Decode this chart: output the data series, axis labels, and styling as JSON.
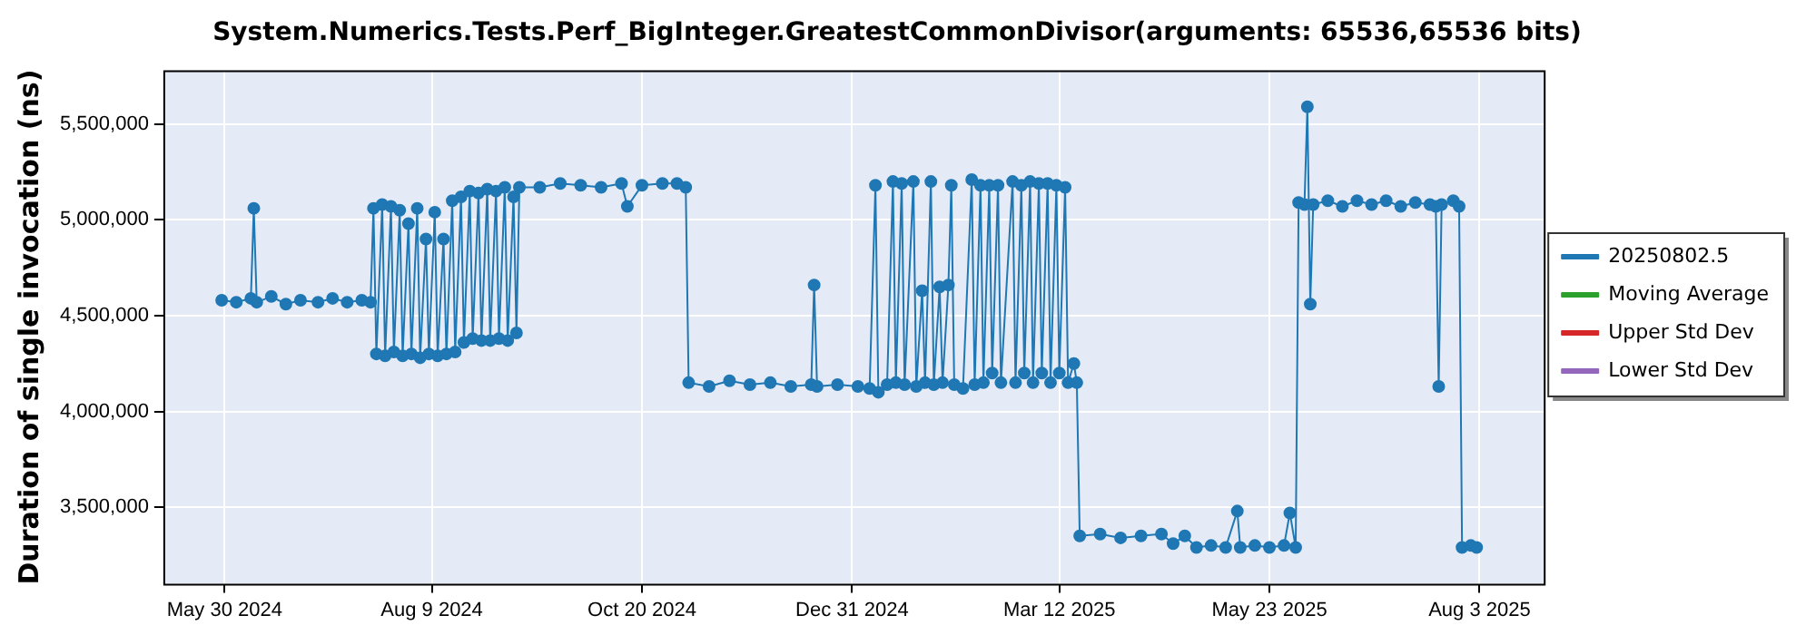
{
  "chart_data": {
    "type": "line",
    "title": "System.Numerics.Tests.Perf_BigInteger.GreatestCommonDivisor(arguments: 65536,65536 bits)",
    "ylabel": "Duration of single invocation (ns)",
    "grid": true,
    "legend": "right",
    "marker": "circle",
    "line_style": "solid",
    "xlim": [
      "2024-05-09",
      "2025-08-25"
    ],
    "xticks": [
      {
        "value": "2024-05-30",
        "label": "May 30 2024"
      },
      {
        "value": "2024-08-09",
        "label": "Aug 9 2024"
      },
      {
        "value": "2024-10-20",
        "label": "Oct 20 2024"
      },
      {
        "value": "2024-12-31",
        "label": "Dec 31 2024"
      },
      {
        "value": "2025-03-12",
        "label": "Mar 12 2025"
      },
      {
        "value": "2025-05-23",
        "label": "May 23 2025"
      },
      {
        "value": "2025-08-03",
        "label": "Aug 3 2025"
      }
    ],
    "ylim": [
      3100000,
      5780000
    ],
    "yticks": [
      {
        "value": 3500000,
        "label": "3,500,000"
      },
      {
        "value": 4000000,
        "label": "4,000,000"
      },
      {
        "value": 4500000,
        "label": "4,500,000"
      },
      {
        "value": 5000000,
        "label": "5,000,000"
      },
      {
        "value": 5500000,
        "label": "5,500,000"
      }
    ],
    "series": [
      {
        "name": "20250802.5",
        "color": "#1f77b4",
        "x": [
          "2024-05-29",
          "2024-06-03",
          "2024-06-08",
          "2024-06-09",
          "2024-06-10",
          "2024-06-15",
          "2024-06-20",
          "2024-06-25",
          "2024-07-01",
          "2024-07-06",
          "2024-07-11",
          "2024-07-16",
          "2024-07-19",
          "2024-07-20",
          "2024-07-21",
          "2024-07-23",
          "2024-07-24",
          "2024-07-26",
          "2024-07-27",
          "2024-07-29",
          "2024-07-30",
          "2024-08-01",
          "2024-08-02",
          "2024-08-04",
          "2024-08-05",
          "2024-08-07",
          "2024-08-08",
          "2024-08-10",
          "2024-08-11",
          "2024-08-13",
          "2024-08-14",
          "2024-08-16",
          "2024-08-17",
          "2024-08-19",
          "2024-08-20",
          "2024-08-22",
          "2024-08-23",
          "2024-08-25",
          "2024-08-26",
          "2024-08-28",
          "2024-08-29",
          "2024-08-31",
          "2024-09-01",
          "2024-09-03",
          "2024-09-04",
          "2024-09-06",
          "2024-09-07",
          "2024-09-08",
          "2024-09-15",
          "2024-09-22",
          "2024-09-29",
          "2024-10-06",
          "2024-10-13",
          "2024-10-15",
          "2024-10-20",
          "2024-10-27",
          "2024-11-01",
          "2024-11-04",
          "2024-11-05",
          "2024-11-12",
          "2024-11-19",
          "2024-11-26",
          "2024-12-03",
          "2024-12-10",
          "2024-12-17",
          "2024-12-18",
          "2024-12-19",
          "2024-12-26",
          "2025-01-02",
          "2025-01-06",
          "2025-01-08",
          "2025-01-09",
          "2025-01-12",
          "2025-01-14",
          "2025-01-15",
          "2025-01-17",
          "2025-01-18",
          "2025-01-21",
          "2025-01-22",
          "2025-01-24",
          "2025-01-25",
          "2025-01-27",
          "2025-01-28",
          "2025-01-30",
          "2025-01-31",
          "2025-02-02",
          "2025-02-03",
          "2025-02-04",
          "2025-02-07",
          "2025-02-10",
          "2025-02-11",
          "2025-02-13",
          "2025-02-14",
          "2025-02-16",
          "2025-02-17",
          "2025-02-19",
          "2025-02-20",
          "2025-02-24",
          "2025-02-25",
          "2025-02-27",
          "2025-02-28",
          "2025-03-02",
          "2025-03-03",
          "2025-03-05",
          "2025-03-06",
          "2025-03-08",
          "2025-03-09",
          "2025-03-11",
          "2025-03-12",
          "2025-03-14",
          "2025-03-15",
          "2025-03-17",
          "2025-03-18",
          "2025-03-19",
          "2025-03-26",
          "2025-04-02",
          "2025-04-09",
          "2025-04-16",
          "2025-04-20",
          "2025-04-24",
          "2025-04-28",
          "2025-05-03",
          "2025-05-08",
          "2025-05-12",
          "2025-05-13",
          "2025-05-18",
          "2025-05-23",
          "2025-05-28",
          "2025-05-30",
          "2025-06-01",
          "2025-06-02",
          "2025-06-04",
          "2025-06-05",
          "2025-06-06",
          "2025-06-07",
          "2025-06-12",
          "2025-06-17",
          "2025-06-22",
          "2025-06-27",
          "2025-07-02",
          "2025-07-07",
          "2025-07-12",
          "2025-07-17",
          "2025-07-19",
          "2025-07-20",
          "2025-07-21",
          "2025-07-25",
          "2025-07-27",
          "2025-07-28",
          "2025-07-31",
          "2025-08-02"
        ],
        "values": [
          4580000,
          4570000,
          4590000,
          5060000,
          4570000,
          4600000,
          4560000,
          4580000,
          4570000,
          4590000,
          4570000,
          4580000,
          4570000,
          5060000,
          4300000,
          5080000,
          4290000,
          5070000,
          4310000,
          5050000,
          4290000,
          4980000,
          4300000,
          5060000,
          4280000,
          4900000,
          4300000,
          5040000,
          4290000,
          4900000,
          4300000,
          5100000,
          4310000,
          5120000,
          4360000,
          5150000,
          4380000,
          5140000,
          4370000,
          5160000,
          4370000,
          5150000,
          4380000,
          5170000,
          4370000,
          5120000,
          4410000,
          5170000,
          5170000,
          5190000,
          5180000,
          5170000,
          5190000,
          5070000,
          5180000,
          5190000,
          5190000,
          5170000,
          4150000,
          4130000,
          4160000,
          4140000,
          4150000,
          4130000,
          4140000,
          4660000,
          4130000,
          4140000,
          4130000,
          4120000,
          5180000,
          4100000,
          4140000,
          5200000,
          4150000,
          5190000,
          4140000,
          5200000,
          4130000,
          4630000,
          4150000,
          5200000,
          4140000,
          4650000,
          4150000,
          4660000,
          5180000,
          4140000,
          4120000,
          5210000,
          4140000,
          5180000,
          4150000,
          5180000,
          4200000,
          5180000,
          4150000,
          5200000,
          4150000,
          5180000,
          4200000,
          5200000,
          4150000,
          5190000,
          4200000,
          5190000,
          4150000,
          5180000,
          4200000,
          5170000,
          4150000,
          4250000,
          4150000,
          3350000,
          3360000,
          3340000,
          3350000,
          3360000,
          3310000,
          3350000,
          3290000,
          3300000,
          3290000,
          3480000,
          3290000,
          3300000,
          3290000,
          3300000,
          3470000,
          3290000,
          5090000,
          5080000,
          5590000,
          4560000,
          5080000,
          5100000,
          5070000,
          5100000,
          5080000,
          5100000,
          5070000,
          5090000,
          5080000,
          5070000,
          4130000,
          5080000,
          5100000,
          5070000,
          3290000,
          3300000,
          3290000
        ]
      },
      {
        "name": "Moving Average",
        "color": "#2ca02c"
      },
      {
        "name": "Upper Std Dev",
        "color": "#d62728"
      },
      {
        "name": "Lower Std Dev",
        "color": "#9467bd"
      }
    ]
  }
}
